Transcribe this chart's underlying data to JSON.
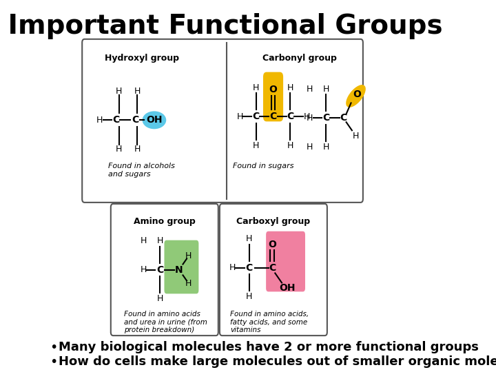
{
  "title": "4 Important Functional Groups",
  "title_fontsize": 28,
  "title_fontweight": "bold",
  "bullet1": "Many biological molecules have 2 or more functional groups",
  "bullet2": "How do cells make large molecules out of smaller organic molecules",
  "bullet_fontsize": 13,
  "bg_color": "#ffffff",
  "box_edge_color": "#555555",
  "box1_label": "Hydroxyl group",
  "box2_label": "Carbonyl group",
  "box3_label": "Amino group",
  "box4_label": "Carboxyl group",
  "hydroxyl_highlight": "#5bc8e8",
  "carbonyl_highlight": "#f0b800",
  "amino_highlight": "#90c978",
  "carboxyl_highlight": "#f080a0",
  "found1": "Found in alcohols\nand sugars",
  "found2": "Found in sugars",
  "found3": "Found in amino acids\nand urea in urine (from\nprotein breakdown)",
  "found4": "Found in amino acids,\nfatty acids, and some\nvitamins"
}
